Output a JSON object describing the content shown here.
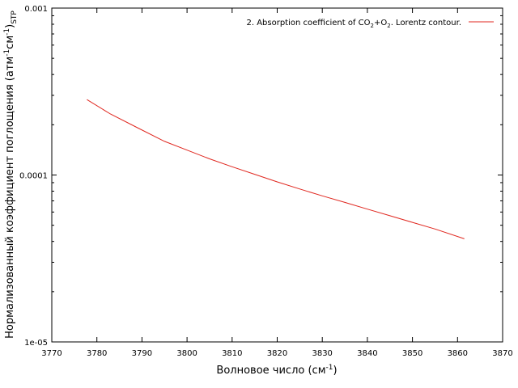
{
  "chart_data": {
    "type": "line",
    "xlabel": {
      "main": "Волновое число (см",
      "sup": "-1",
      "tail": ")"
    },
    "ylabel": {
      "p1": "Нормализованный коэффициент поглощения (атм",
      "sup1": "-1",
      "p2": "см",
      "sup2": "-1",
      "p3": ")",
      "sub": "STP"
    },
    "xlim": [
      3770,
      3870
    ],
    "ylim": [
      1e-05,
      0.001
    ],
    "yscale": "log",
    "grid": false,
    "legend_position": "top-right",
    "x_ticks": [
      {
        "value": 3770,
        "label": "3770"
      },
      {
        "value": 3780,
        "label": "3780"
      },
      {
        "value": 3790,
        "label": "3790"
      },
      {
        "value": 3800,
        "label": "3800"
      },
      {
        "value": 3810,
        "label": "3810"
      },
      {
        "value": 3820,
        "label": "3820"
      },
      {
        "value": 3830,
        "label": "3830"
      },
      {
        "value": 3840,
        "label": "3840"
      },
      {
        "value": 3850,
        "label": "3850"
      },
      {
        "value": 3860,
        "label": "3860"
      },
      {
        "value": 3870,
        "label": "3870"
      }
    ],
    "y_ticks": [
      {
        "value": 1e-05,
        "label": "1e-05"
      },
      {
        "value": 0.0001,
        "label": "0.0001"
      },
      {
        "value": 0.001,
        "label": "0.001"
      }
    ],
    "series": [
      {
        "name": {
          "p1": "2. Absorption coefficient of CO",
          "sub1": "2",
          "p2": "+O",
          "sub2": "2",
          "p3": ". Lorentz contour."
        },
        "color": "#e0271f",
        "x": [
          3777.8,
          3783,
          3789,
          3795,
          3800,
          3805,
          3810,
          3815,
          3820,
          3825,
          3830,
          3835,
          3840,
          3845,
          3850,
          3855,
          3861.5
        ],
        "y": [
          0.000283,
          0.000232,
          0.000192,
          0.000159,
          0.000141,
          0.000125,
          0.000112,
          0.000101,
          9.1e-05,
          8.25e-05,
          7.5e-05,
          6.85e-05,
          6.25e-05,
          5.7e-05,
          5.2e-05,
          4.75e-05,
          4.15e-05
        ]
      }
    ]
  }
}
